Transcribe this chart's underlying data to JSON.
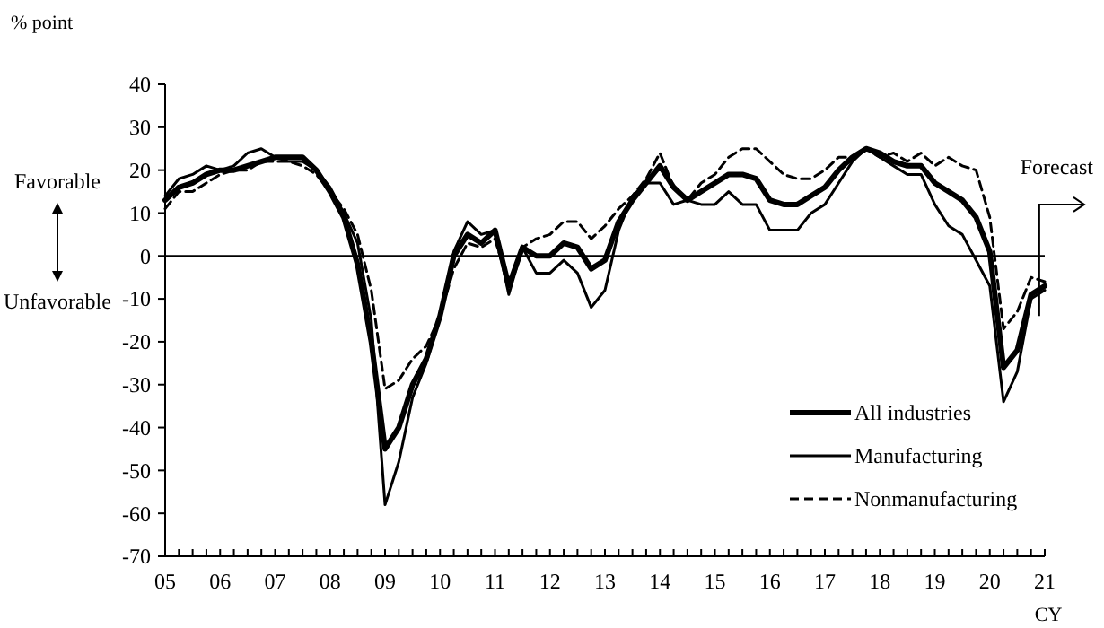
{
  "chart_data": {
    "type": "line",
    "ylabel": "% point",
    "xlabel": "CY",
    "x": [
      2005,
      2005.25,
      2005.5,
      2005.75,
      2006,
      2006.25,
      2006.5,
      2006.75,
      2007,
      2007.25,
      2007.5,
      2007.75,
      2008,
      2008.25,
      2008.5,
      2008.75,
      2009,
      2009.25,
      2009.5,
      2009.75,
      2010,
      2010.25,
      2010.5,
      2010.75,
      2011,
      2011.25,
      2011.5,
      2011.75,
      2012,
      2012.25,
      2012.5,
      2012.75,
      2013,
      2013.25,
      2013.5,
      2013.75,
      2014,
      2014.25,
      2014.5,
      2014.75,
      2015,
      2015.25,
      2015.5,
      2015.75,
      2016,
      2016.25,
      2016.5,
      2016.75,
      2017,
      2017.25,
      2017.5,
      2017.75,
      2018,
      2018.25,
      2018.5,
      2018.75,
      2019,
      2019.25,
      2019.5,
      2019.75,
      2020,
      2020.25,
      2020.5,
      2020.75,
      2021
    ],
    "series": [
      {
        "name": "All industries",
        "color": "#000000",
        "line_style": "solid",
        "values": [
          13,
          16,
          17,
          19,
          20,
          20,
          21,
          22,
          23,
          23,
          23,
          20,
          15,
          9,
          -2,
          -20,
          -45,
          -40,
          -30,
          -24,
          -14,
          0,
          5,
          3,
          6,
          -7,
          2,
          0,
          0,
          3,
          2,
          -3,
          -1,
          8,
          13,
          17,
          21,
          16,
          13,
          15,
          17,
          19,
          19,
          18,
          13,
          12,
          12,
          14,
          16,
          20,
          23,
          25,
          24,
          22,
          21,
          21,
          17,
          15,
          13,
          9,
          1,
          -26,
          -22,
          -9,
          -7
        ]
      },
      {
        "name": "Manufacturing",
        "color": "#000000",
        "line_style": "solid",
        "values": [
          14,
          18,
          19,
          21,
          20,
          21,
          24,
          25,
          23,
          22,
          22,
          20,
          16,
          10,
          3,
          -15,
          -58,
          -48,
          -33,
          -25,
          -14,
          1,
          8,
          5,
          6,
          -9,
          2,
          -4,
          -4,
          -1,
          -4,
          -12,
          -8,
          6,
          14,
          17,
          17,
          12,
          13,
          12,
          12,
          15,
          12,
          12,
          6,
          6,
          6,
          10,
          12,
          17,
          22,
          25,
          23,
          21,
          19,
          19,
          12,
          7,
          5,
          -1,
          -7,
          -34,
          -27,
          -10,
          -8
        ]
      },
      {
        "name": "Nonmanufacturing",
        "color": "#000000",
        "line_style": "dashed",
        "values": [
          11,
          15,
          15,
          17,
          19,
          20,
          20,
          22,
          22,
          22,
          21,
          19,
          15,
          11,
          5,
          -8,
          -31,
          -29,
          -24,
          -21,
          -14,
          -3,
          3,
          2,
          4,
          -7,
          2,
          4,
          5,
          8,
          8,
          4,
          7,
          11,
          14,
          18,
          24,
          16,
          13,
          17,
          19,
          23,
          25,
          25,
          22,
          19,
          18,
          18,
          20,
          23,
          23,
          25,
          23,
          24,
          22,
          24,
          21,
          23,
          21,
          20,
          9,
          -17,
          -13,
          -5,
          -6
        ]
      }
    ],
    "xlim": [
      2005,
      2021
    ],
    "xticks": [
      {
        "value": 2005,
        "label": "05"
      },
      {
        "value": 2005.25,
        "label": null
      },
      {
        "value": 2005.5,
        "label": null
      },
      {
        "value": 2005.75,
        "label": null
      },
      {
        "value": 2006,
        "label": "06"
      },
      {
        "value": 2006.25,
        "label": null
      },
      {
        "value": 2006.5,
        "label": null
      },
      {
        "value": 2006.75,
        "label": null
      },
      {
        "value": 2007,
        "label": "07"
      },
      {
        "value": 2007.25,
        "label": null
      },
      {
        "value": 2007.5,
        "label": null
      },
      {
        "value": 2007.75,
        "label": null
      },
      {
        "value": 2008,
        "label": "08"
      },
      {
        "value": 2008.25,
        "label": null
      },
      {
        "value": 2008.5,
        "label": null
      },
      {
        "value": 2008.75,
        "label": null
      },
      {
        "value": 2009,
        "label": "09"
      },
      {
        "value": 2009.25,
        "label": null
      },
      {
        "value": 2009.5,
        "label": null
      },
      {
        "value": 2009.75,
        "label": null
      },
      {
        "value": 2010,
        "label": "10"
      },
      {
        "value": 2010.25,
        "label": null
      },
      {
        "value": 2010.5,
        "label": null
      },
      {
        "value": 2010.75,
        "label": null
      },
      {
        "value": 2011,
        "label": "11"
      },
      {
        "value": 2011.25,
        "label": null
      },
      {
        "value": 2011.5,
        "label": null
      },
      {
        "value": 2011.75,
        "label": null
      },
      {
        "value": 2012,
        "label": "12"
      },
      {
        "value": 2012.25,
        "label": null
      },
      {
        "value": 2012.5,
        "label": null
      },
      {
        "value": 2012.75,
        "label": null
      },
      {
        "value": 2013,
        "label": "13"
      },
      {
        "value": 2013.25,
        "label": null
      },
      {
        "value": 2013.5,
        "label": null
      },
      {
        "value": 2013.75,
        "label": null
      },
      {
        "value": 2014,
        "label": "14"
      },
      {
        "value": 2014.25,
        "label": null
      },
      {
        "value": 2014.5,
        "label": null
      },
      {
        "value": 2014.75,
        "label": null
      },
      {
        "value": 2015,
        "label": "15"
      },
      {
        "value": 2015.25,
        "label": null
      },
      {
        "value": 2015.5,
        "label": null
      },
      {
        "value": 2015.75,
        "label": null
      },
      {
        "value": 2016,
        "label": "16"
      },
      {
        "value": 2016.25,
        "label": null
      },
      {
        "value": 2016.5,
        "label": null
      },
      {
        "value": 2016.75,
        "label": null
      },
      {
        "value": 2017,
        "label": "17"
      },
      {
        "value": 2017.25,
        "label": null
      },
      {
        "value": 2017.5,
        "label": null
      },
      {
        "value": 2017.75,
        "label": null
      },
      {
        "value": 2018,
        "label": "18"
      },
      {
        "value": 2018.25,
        "label": null
      },
      {
        "value": 2018.5,
        "label": null
      },
      {
        "value": 2018.75,
        "label": null
      },
      {
        "value": 2019,
        "label": "19"
      },
      {
        "value": 2019.25,
        "label": null
      },
      {
        "value": 2019.5,
        "label": null
      },
      {
        "value": 2019.75,
        "label": null
      },
      {
        "value": 2020,
        "label": "20"
      },
      {
        "value": 2020.25,
        "label": null
      },
      {
        "value": 2020.5,
        "label": null
      },
      {
        "value": 2020.75,
        "label": null
      },
      {
        "value": 2021,
        "label": "21"
      }
    ],
    "ylim": [
      -70,
      40
    ],
    "yticks": [
      -70,
      -60,
      -50,
      -40,
      -30,
      -20,
      -10,
      0,
      10,
      20,
      30,
      40
    ],
    "ref_lines": [
      {
        "axis": "y",
        "value": 0
      }
    ],
    "annotations": [
      "Favorable",
      "Unfavorable",
      "Forecast"
    ],
    "grid": false,
    "legend": "bottom right"
  }
}
